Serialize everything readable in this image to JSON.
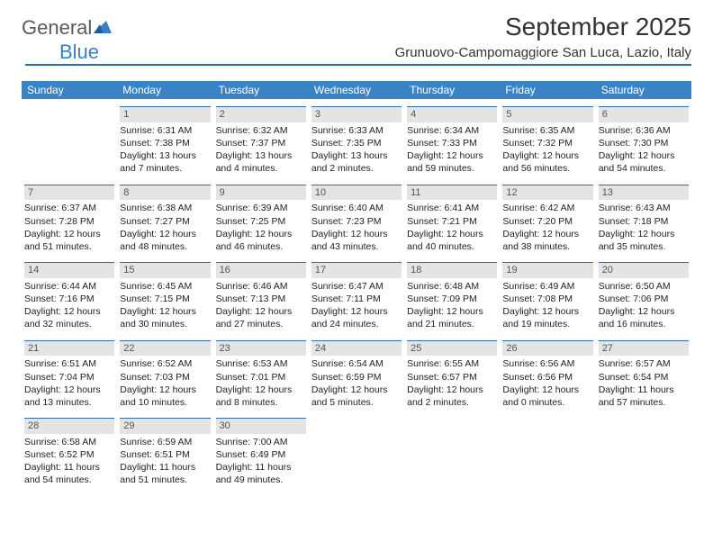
{
  "brand": {
    "name1": "General",
    "name2": "Blue"
  },
  "title": "September 2025",
  "location": "Grunuovo-Campomaggiore San Luca, Lazio, Italy",
  "colors": {
    "accent": "#3a84c6",
    "border": "#2f6fa8",
    "daybar": "#e4e4e4",
    "text": "#222222",
    "background": "#ffffff"
  },
  "dows": [
    "Sunday",
    "Monday",
    "Tuesday",
    "Wednesday",
    "Thursday",
    "Friday",
    "Saturday"
  ],
  "weeks": [
    [
      null,
      {
        "n": "1",
        "sr": "Sunrise: 6:31 AM",
        "ss": "Sunset: 7:38 PM",
        "dl": "Daylight: 13 hours and 7 minutes."
      },
      {
        "n": "2",
        "sr": "Sunrise: 6:32 AM",
        "ss": "Sunset: 7:37 PM",
        "dl": "Daylight: 13 hours and 4 minutes."
      },
      {
        "n": "3",
        "sr": "Sunrise: 6:33 AM",
        "ss": "Sunset: 7:35 PM",
        "dl": "Daylight: 13 hours and 2 minutes."
      },
      {
        "n": "4",
        "sr": "Sunrise: 6:34 AM",
        "ss": "Sunset: 7:33 PM",
        "dl": "Daylight: 12 hours and 59 minutes."
      },
      {
        "n": "5",
        "sr": "Sunrise: 6:35 AM",
        "ss": "Sunset: 7:32 PM",
        "dl": "Daylight: 12 hours and 56 minutes."
      },
      {
        "n": "6",
        "sr": "Sunrise: 6:36 AM",
        "ss": "Sunset: 7:30 PM",
        "dl": "Daylight: 12 hours and 54 minutes."
      }
    ],
    [
      {
        "n": "7",
        "sr": "Sunrise: 6:37 AM",
        "ss": "Sunset: 7:28 PM",
        "dl": "Daylight: 12 hours and 51 minutes."
      },
      {
        "n": "8",
        "sr": "Sunrise: 6:38 AM",
        "ss": "Sunset: 7:27 PM",
        "dl": "Daylight: 12 hours and 48 minutes."
      },
      {
        "n": "9",
        "sr": "Sunrise: 6:39 AM",
        "ss": "Sunset: 7:25 PM",
        "dl": "Daylight: 12 hours and 46 minutes."
      },
      {
        "n": "10",
        "sr": "Sunrise: 6:40 AM",
        "ss": "Sunset: 7:23 PM",
        "dl": "Daylight: 12 hours and 43 minutes."
      },
      {
        "n": "11",
        "sr": "Sunrise: 6:41 AM",
        "ss": "Sunset: 7:21 PM",
        "dl": "Daylight: 12 hours and 40 minutes."
      },
      {
        "n": "12",
        "sr": "Sunrise: 6:42 AM",
        "ss": "Sunset: 7:20 PM",
        "dl": "Daylight: 12 hours and 38 minutes."
      },
      {
        "n": "13",
        "sr": "Sunrise: 6:43 AM",
        "ss": "Sunset: 7:18 PM",
        "dl": "Daylight: 12 hours and 35 minutes."
      }
    ],
    [
      {
        "n": "14",
        "sr": "Sunrise: 6:44 AM",
        "ss": "Sunset: 7:16 PM",
        "dl": "Daylight: 12 hours and 32 minutes."
      },
      {
        "n": "15",
        "sr": "Sunrise: 6:45 AM",
        "ss": "Sunset: 7:15 PM",
        "dl": "Daylight: 12 hours and 30 minutes."
      },
      {
        "n": "16",
        "sr": "Sunrise: 6:46 AM",
        "ss": "Sunset: 7:13 PM",
        "dl": "Daylight: 12 hours and 27 minutes."
      },
      {
        "n": "17",
        "sr": "Sunrise: 6:47 AM",
        "ss": "Sunset: 7:11 PM",
        "dl": "Daylight: 12 hours and 24 minutes."
      },
      {
        "n": "18",
        "sr": "Sunrise: 6:48 AM",
        "ss": "Sunset: 7:09 PM",
        "dl": "Daylight: 12 hours and 21 minutes."
      },
      {
        "n": "19",
        "sr": "Sunrise: 6:49 AM",
        "ss": "Sunset: 7:08 PM",
        "dl": "Daylight: 12 hours and 19 minutes."
      },
      {
        "n": "20",
        "sr": "Sunrise: 6:50 AM",
        "ss": "Sunset: 7:06 PM",
        "dl": "Daylight: 12 hours and 16 minutes."
      }
    ],
    [
      {
        "n": "21",
        "sr": "Sunrise: 6:51 AM",
        "ss": "Sunset: 7:04 PM",
        "dl": "Daylight: 12 hours and 13 minutes."
      },
      {
        "n": "22",
        "sr": "Sunrise: 6:52 AM",
        "ss": "Sunset: 7:03 PM",
        "dl": "Daylight: 12 hours and 10 minutes."
      },
      {
        "n": "23",
        "sr": "Sunrise: 6:53 AM",
        "ss": "Sunset: 7:01 PM",
        "dl": "Daylight: 12 hours and 8 minutes."
      },
      {
        "n": "24",
        "sr": "Sunrise: 6:54 AM",
        "ss": "Sunset: 6:59 PM",
        "dl": "Daylight: 12 hours and 5 minutes."
      },
      {
        "n": "25",
        "sr": "Sunrise: 6:55 AM",
        "ss": "Sunset: 6:57 PM",
        "dl": "Daylight: 12 hours and 2 minutes."
      },
      {
        "n": "26",
        "sr": "Sunrise: 6:56 AM",
        "ss": "Sunset: 6:56 PM",
        "dl": "Daylight: 12 hours and 0 minutes."
      },
      {
        "n": "27",
        "sr": "Sunrise: 6:57 AM",
        "ss": "Sunset: 6:54 PM",
        "dl": "Daylight: 11 hours and 57 minutes."
      }
    ],
    [
      {
        "n": "28",
        "sr": "Sunrise: 6:58 AM",
        "ss": "Sunset: 6:52 PM",
        "dl": "Daylight: 11 hours and 54 minutes."
      },
      {
        "n": "29",
        "sr": "Sunrise: 6:59 AM",
        "ss": "Sunset: 6:51 PM",
        "dl": "Daylight: 11 hours and 51 minutes."
      },
      {
        "n": "30",
        "sr": "Sunrise: 7:00 AM",
        "ss": "Sunset: 6:49 PM",
        "dl": "Daylight: 11 hours and 49 minutes."
      },
      null,
      null,
      null,
      null
    ]
  ]
}
